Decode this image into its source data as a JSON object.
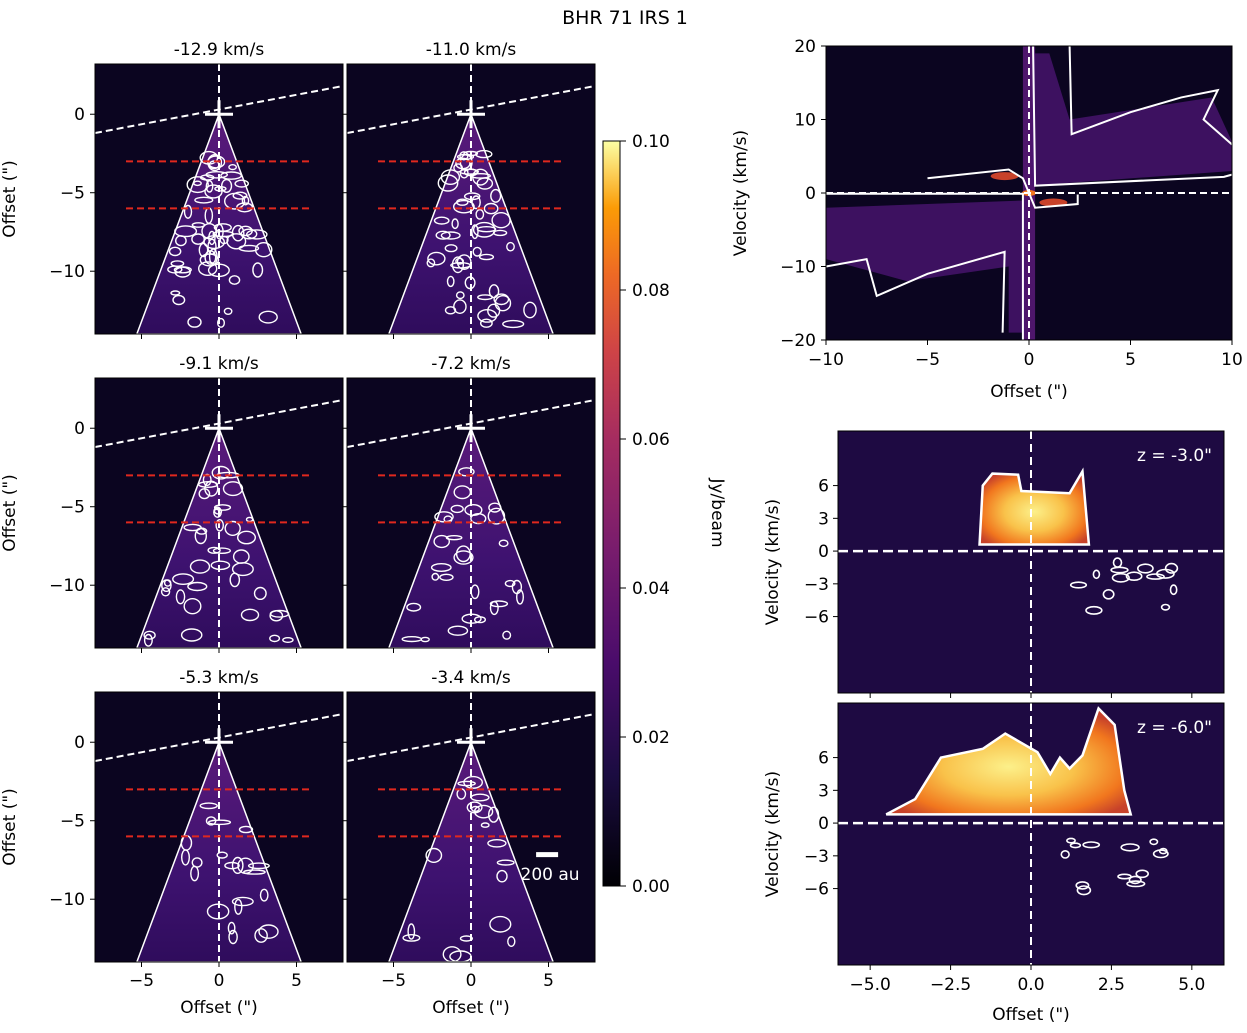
{
  "figure_title": "BHR 71 IRS 1",
  "colors": {
    "panel_bg": "#0b0520",
    "cone_fill": "#3b1067",
    "dash_white": "#ffffff",
    "dash_red": "#e0281e",
    "spec_bright": "#f6e36a",
    "spec_mid": "#f27a1e"
  },
  "chart_data": [
    {
      "type": "heatmap",
      "id": "channel_maps",
      "panels": [
        {
          "title": "-12.9 km/s",
          "velocity": -12.9
        },
        {
          "title": "-11.0 km/s",
          "velocity": -11.0
        },
        {
          "title": "-9.1 km/s",
          "velocity": -9.1
        },
        {
          "title": "-7.2 km/s",
          "velocity": -7.2
        },
        {
          "title": "-5.3 km/s",
          "velocity": -5.3
        },
        {
          "title": "-3.4 km/s",
          "velocity": -3.4
        }
      ],
      "xlabel": "Offset (\")",
      "ylabel": "Offset (\")",
      "xlim": [
        -8,
        8
      ],
      "ylim": [
        -14,
        3.2
      ],
      "xticks": [
        {
          "v": -5,
          "label": "−5"
        },
        {
          "v": 0,
          "label": "0"
        },
        {
          "v": 5,
          "label": "5"
        }
      ],
      "yticks": [
        {
          "v": 0,
          "label": "0"
        },
        {
          "v": -5,
          "label": "−5"
        },
        {
          "v": -10,
          "label": "−10"
        }
      ],
      "cuts_z": [
        -3.0,
        -6.0
      ],
      "scalebar_label": "200 au"
    },
    {
      "type": "heatmap",
      "id": "colorbar",
      "label": "Jy/beam",
      "range": [
        0,
        0.1
      ],
      "ticks": [
        {
          "v": 0.0,
          "label": "0.00"
        },
        {
          "v": 0.02,
          "label": "0.02"
        },
        {
          "v": 0.04,
          "label": "0.04"
        },
        {
          "v": 0.06,
          "label": "0.06"
        },
        {
          "v": 0.08,
          "label": "0.08"
        },
        {
          "v": 0.1,
          "label": "0.10"
        }
      ]
    },
    {
      "type": "heatmap",
      "id": "pv_axis",
      "xlabel": "Offset (\")",
      "ylabel": "Velocity (km/s)",
      "xlim": [
        -10,
        10
      ],
      "ylim": [
        -20,
        20
      ],
      "xticks": [
        {
          "v": -10,
          "label": "−10"
        },
        {
          "v": -5,
          "label": "−5"
        },
        {
          "v": 0,
          "label": "0"
        },
        {
          "v": 5,
          "label": "5"
        },
        {
          "v": 10,
          "label": "10"
        }
      ],
      "yticks": [
        {
          "v": 20,
          "label": "20"
        },
        {
          "v": 10,
          "label": "10"
        },
        {
          "v": 0,
          "label": "0"
        },
        {
          "v": -10,
          "label": "−10"
        },
        {
          "v": -20,
          "label": "−20"
        }
      ]
    },
    {
      "type": "heatmap",
      "id": "pv_cuts",
      "panels": [
        {
          "label": "z = -3.0\"",
          "z": -3.0
        },
        {
          "label": "z = -6.0\"",
          "z": -6.0
        }
      ],
      "xlabel": "Offset (\")",
      "ylabel": "Velocity (km/s)",
      "xlim": [
        -6,
        6
      ],
      "ylim": [
        -13,
        11
      ],
      "xticks": [
        {
          "v": -5,
          "label": "−5.0"
        },
        {
          "v": -2.5,
          "label": "−2.5"
        },
        {
          "v": 0,
          "label": "0.0"
        },
        {
          "v": 2.5,
          "label": "2.5"
        },
        {
          "v": 5,
          "label": "5.0"
        }
      ],
      "yticks": [
        {
          "v": 6,
          "label": "6"
        },
        {
          "v": 3,
          "label": "3"
        },
        {
          "v": 0,
          "label": "0"
        },
        {
          "v": -3,
          "label": "−3"
        },
        {
          "v": -6,
          "label": "−6"
        }
      ]
    }
  ]
}
